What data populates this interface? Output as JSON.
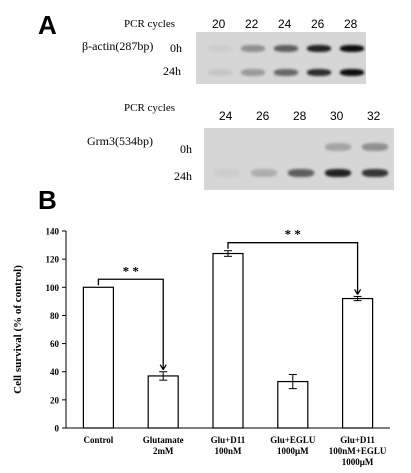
{
  "panel_a": {
    "letter": "A",
    "gel1": {
      "cycles_label": "PCR cycles",
      "cycles": [
        "20",
        "22",
        "24",
        "26",
        "28"
      ],
      "gene_label": "β-actin(287bp)",
      "rows": [
        "0h",
        "24h"
      ],
      "band_intensity": [
        [
          0.05,
          0.35,
          0.6,
          0.9,
          1.0
        ],
        [
          0.08,
          0.3,
          0.55,
          0.85,
          1.0
        ]
      ]
    },
    "gel2": {
      "cycles_label": "PCR cycles",
      "cycles": [
        "24",
        "26",
        "28",
        "30",
        "32"
      ],
      "gene_label": "Grm3(534bp)",
      "rows": [
        "0h",
        "24h"
      ],
      "band_intensity": [
        [
          0.0,
          0.0,
          0.0,
          0.25,
          0.35
        ],
        [
          0.05,
          0.2,
          0.6,
          0.9,
          0.8
        ]
      ]
    }
  },
  "panel_b": {
    "letter": "B"
  },
  "chart_data": {
    "type": "bar",
    "categories": [
      [
        "Control"
      ],
      [
        "Glutamate",
        "2mM"
      ],
      [
        "Glu+D11",
        "100nM"
      ],
      [
        "Glu+EGLU",
        "1000μM"
      ],
      [
        "Glu+D11",
        "100nM+EGLU",
        "1000μM"
      ]
    ],
    "values": [
      100,
      37,
      124,
      33,
      92
    ],
    "errors": [
      0,
      3,
      2,
      5,
      1.5
    ],
    "ylabel": "Cell survival (% of control)",
    "ylim": [
      0,
      140
    ],
    "yticks": [
      0,
      20,
      40,
      60,
      80,
      100,
      120,
      140
    ],
    "significance": [
      {
        "from": 0,
        "to": 1,
        "label": "* *"
      },
      {
        "from": 2,
        "to": 4,
        "label": "* *"
      }
    ],
    "colors": {
      "bar_fill": "#ffffff",
      "bar_stroke": "#000000"
    }
  }
}
